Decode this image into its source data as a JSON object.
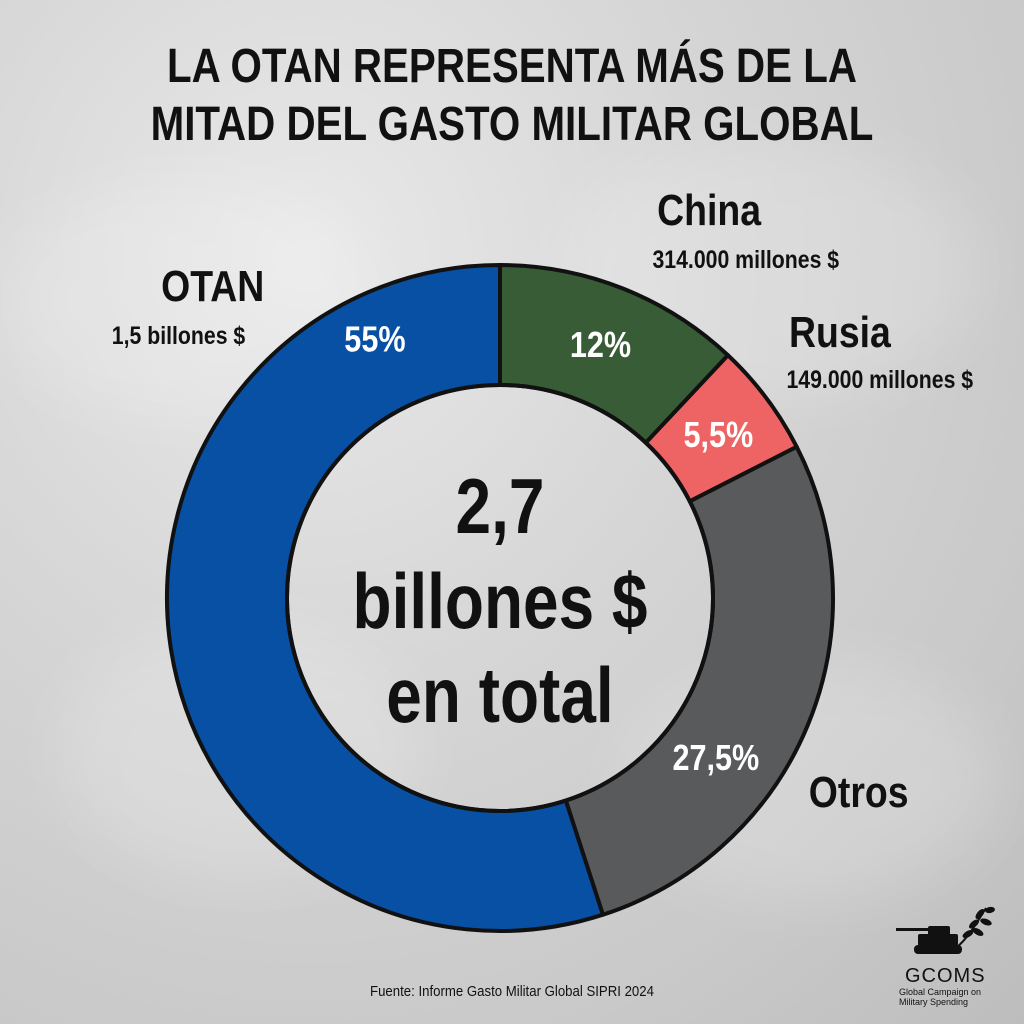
{
  "title_lines": [
    "LA OTAN REPRESENTA MÁS DE LA",
    "MITAD DEL GASTO MILITAR GLOBAL"
  ],
  "center_text": [
    "2,7",
    "billones $",
    "en total"
  ],
  "chart_data": {
    "type": "pie",
    "donut": true,
    "title": "LA OTAN REPRESENTA MÁS DE LA MITAD DEL GASTO MILITAR GLOBAL",
    "slices": [
      {
        "name": "China",
        "value_label": "314.000 millones $",
        "percent": 12,
        "percent_label": "12%",
        "color": "#375c36"
      },
      {
        "name": "Rusia",
        "value_label": "149.000 millones $",
        "percent": 5.5,
        "percent_label": "5,5%",
        "color": "#ee6363"
      },
      {
        "name": "Otros",
        "value_label": "",
        "percent": 27.5,
        "percent_label": "27,5%",
        "color": "#585a5c"
      },
      {
        "name": "OTAN",
        "value_label": "1,5 billones $",
        "percent": 55,
        "percent_label": "55%",
        "color": "#0750a3"
      }
    ],
    "total_label": "2,7 billones $ en total"
  },
  "labels": {
    "otan": {
      "name": "OTAN",
      "value": "1,5 billones $"
    },
    "china": {
      "name": "China",
      "value": "314.000 millones $"
    },
    "rusia": {
      "name": "Rusia",
      "value": "149.000 millones $"
    },
    "otros": {
      "name": "Otros"
    }
  },
  "source": "Fuente: Informe Gasto Militar Global SIPRI 2024",
  "logo": {
    "name": "GCOMS",
    "tagline_1": "Global Campaign on",
    "tagline_2": "Military Spending"
  }
}
